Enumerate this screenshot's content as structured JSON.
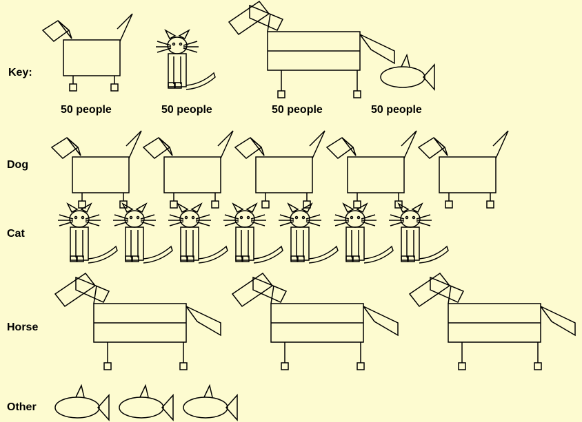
{
  "chart_data": {
    "type": "pictograph",
    "key": {
      "label": "Key:",
      "items": [
        {
          "icon": "dog",
          "caption": "50 people"
        },
        {
          "icon": "cat",
          "caption": "50 people"
        },
        {
          "icon": "horse",
          "caption": "50 people"
        },
        {
          "icon": "fish",
          "caption": "50 people"
        }
      ]
    },
    "categories": [
      "Dog",
      "Cat",
      "Horse",
      "Other"
    ],
    "icons": [
      "dog",
      "cat",
      "horse",
      "fish"
    ],
    "icon_counts": [
      5,
      7,
      3,
      3
    ],
    "values": [
      250,
      350,
      150,
      150
    ],
    "colors": {
      "background": "#fdfbd0",
      "stroke": "#000000",
      "text": "#000000"
    }
  }
}
